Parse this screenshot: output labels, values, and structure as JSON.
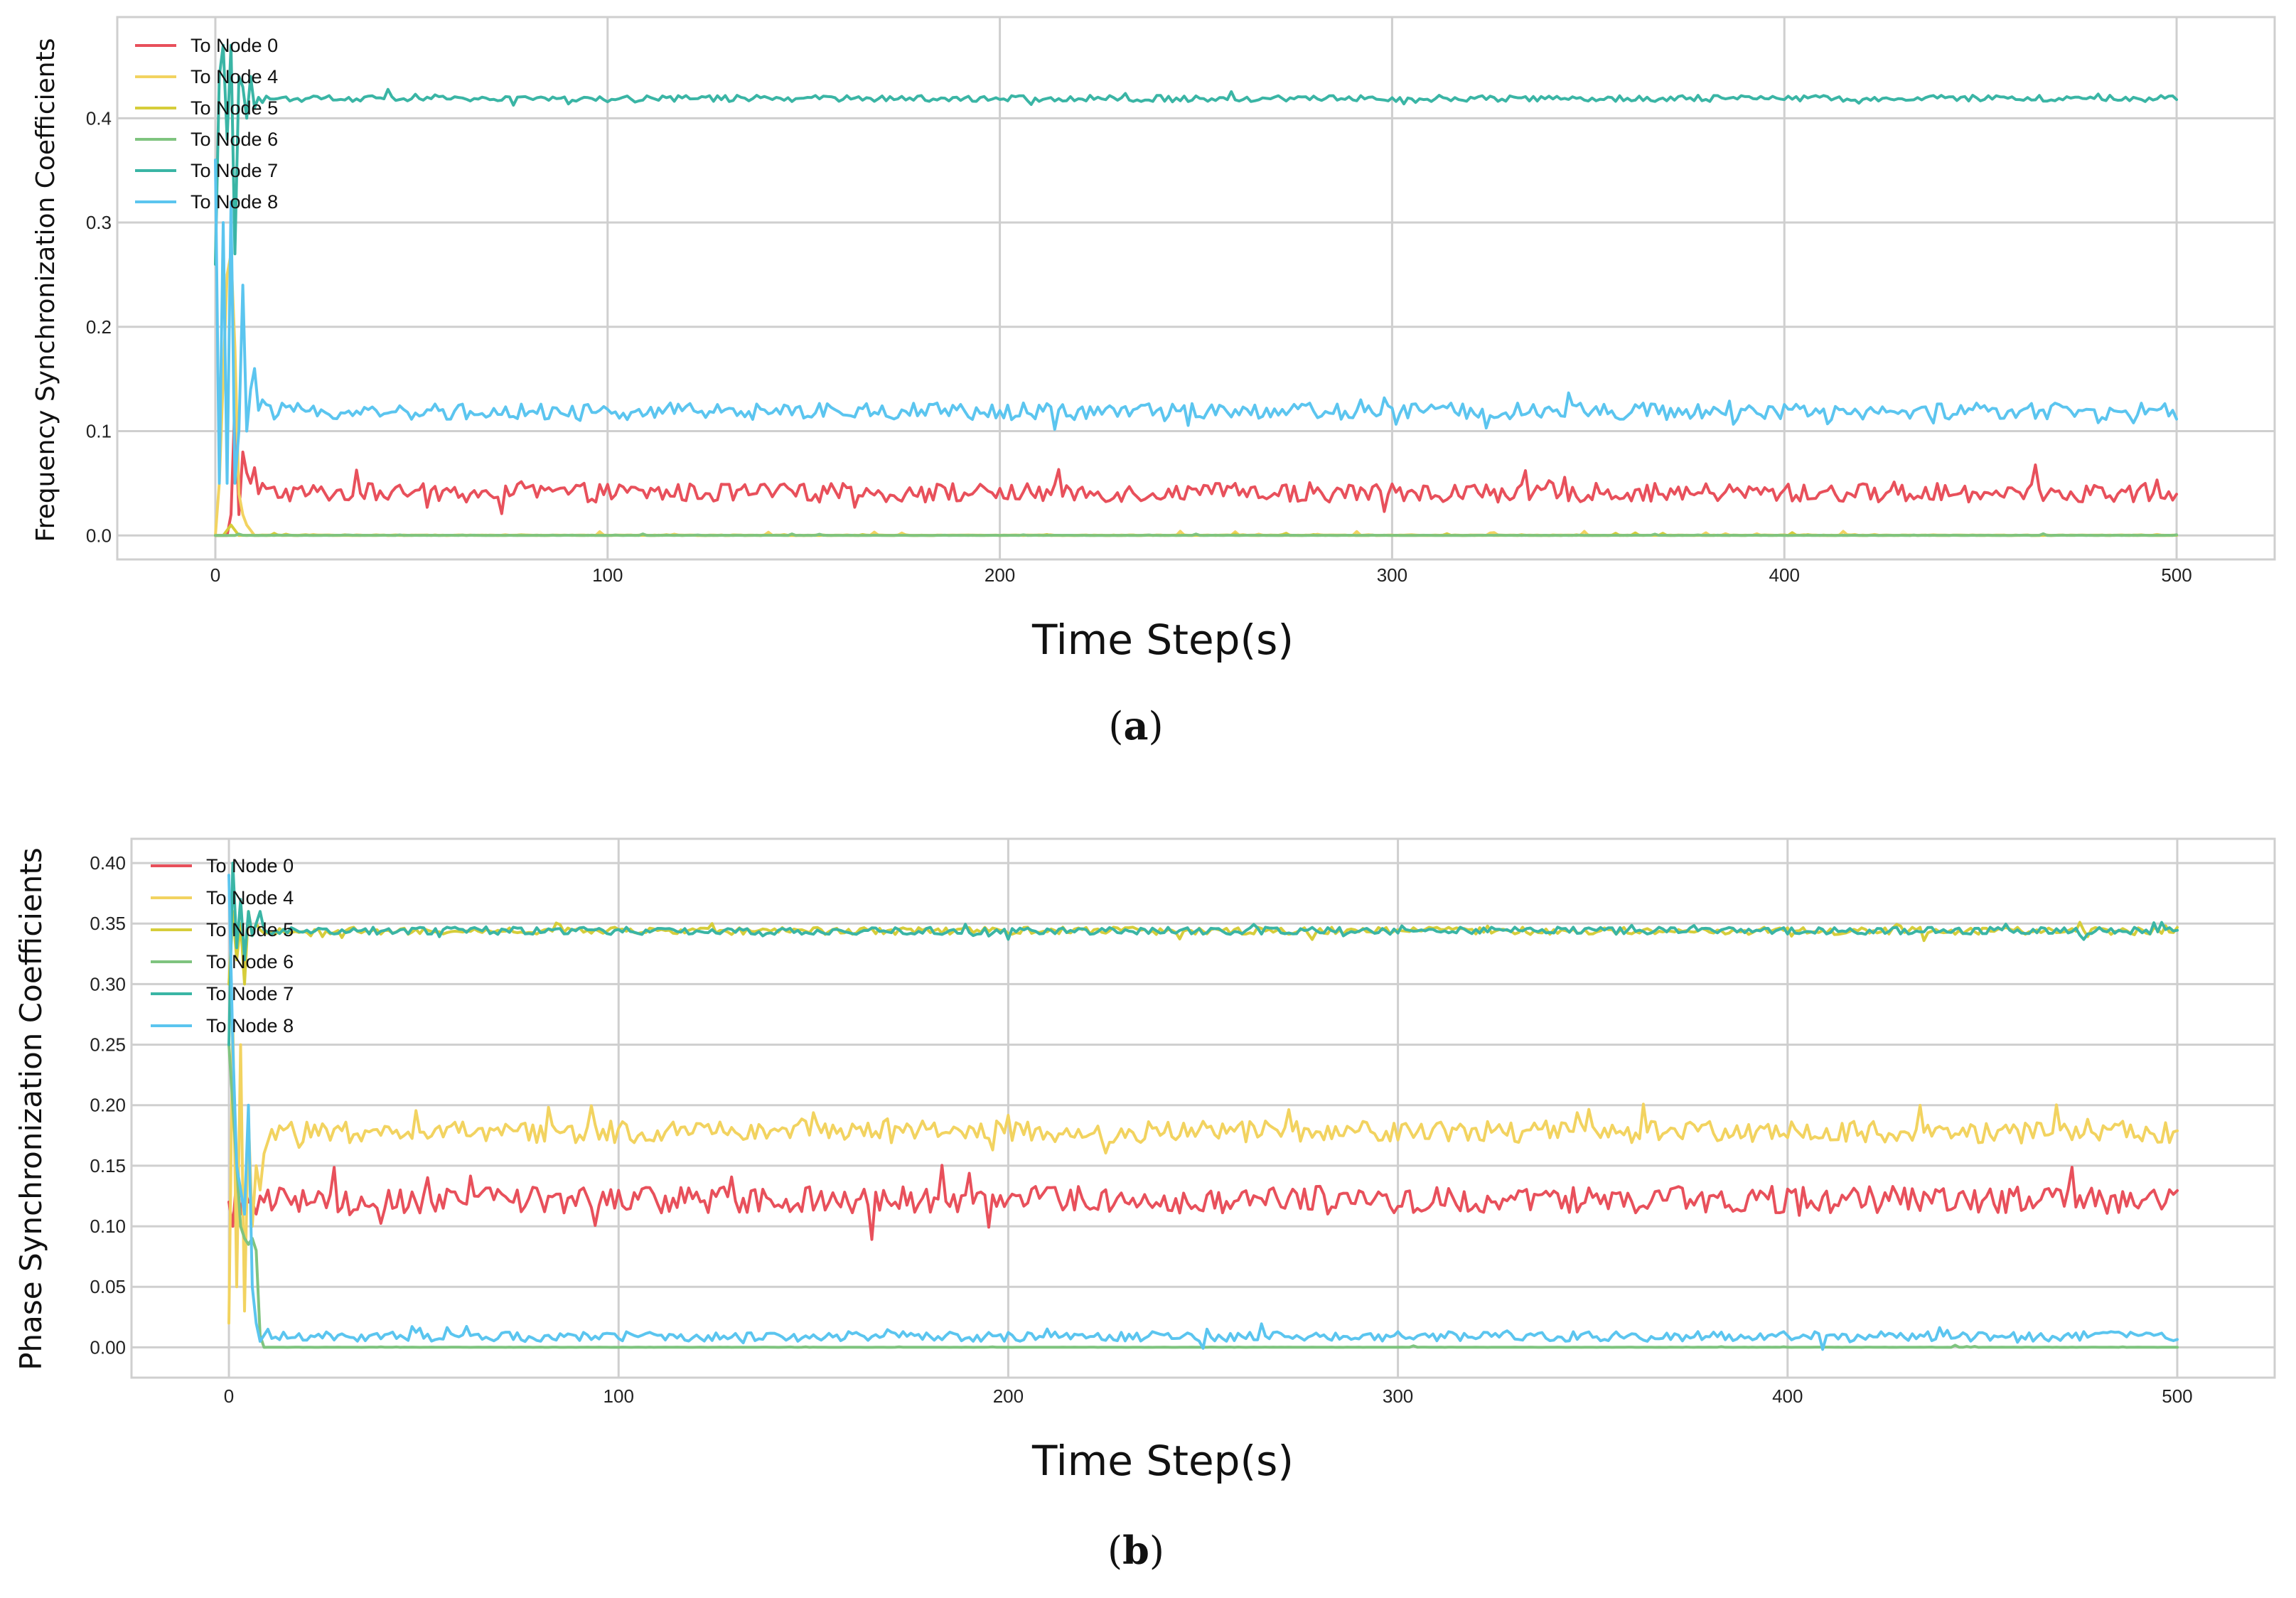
{
  "chart_data": [
    {
      "type": "line",
      "panel": "a",
      "caption_open": "(",
      "caption_letter": "a",
      "caption_close": ")",
      "xlabel": "Time Step(s)",
      "ylabel": "Frequency Synchronization Coefficients",
      "xlim": [
        -25,
        525
      ],
      "ylim": [
        -0.023,
        0.497
      ],
      "xticks": [
        0,
        100,
        200,
        300,
        400,
        500
      ],
      "xtick_labels": [
        "0",
        "100",
        "200",
        "300",
        "400",
        "500"
      ],
      "yticks": [
        0.0,
        0.1,
        0.2,
        0.3,
        0.4
      ],
      "ytick_labels": [
        "0.0",
        "0.1",
        "0.2",
        "0.3",
        "0.4"
      ],
      "legend_position": "top-left",
      "grid": true,
      "series": [
        {
          "name": "To Node 0",
          "color": "#e8505b",
          "baseline": 0.041,
          "noise": 0.009,
          "early": [
            [
              0,
              0.0
            ],
            [
              1,
              0.0
            ],
            [
              2,
              0.0
            ],
            [
              3,
              0.0
            ],
            [
              4,
              0.02
            ],
            [
              5,
              0.13
            ],
            [
              6,
              0.02
            ],
            [
              7,
              0.08
            ],
            [
              8,
              0.06
            ],
            [
              9,
              0.05
            ],
            [
              10,
              0.065
            ],
            [
              11,
              0.04
            ],
            [
              12,
              0.05
            ]
          ]
        },
        {
          "name": "To Node 4",
          "color": "#f2d360",
          "baseline": 0.0,
          "noise": 0.001,
          "early": [
            [
              0,
              0.0
            ],
            [
              1,
              0.05
            ],
            [
              2,
              0.15
            ],
            [
              3,
              0.25
            ],
            [
              4,
              0.27
            ],
            [
              5,
              0.18
            ],
            [
              6,
              0.04
            ],
            [
              7,
              0.02
            ],
            [
              8,
              0.01
            ],
            [
              9,
              0.005
            ],
            [
              10,
              0.0
            ]
          ]
        },
        {
          "name": "To Node 5",
          "color": "#d6cd3a",
          "baseline": 0.0,
          "noise": 0.0008,
          "early": [
            [
              0,
              0.0
            ],
            [
              2,
              0.0
            ],
            [
              4,
              0.01
            ],
            [
              6,
              0.0
            ]
          ]
        },
        {
          "name": "To Node 6",
          "color": "#7fc47f",
          "baseline": 0.0,
          "noise": 0.0005,
          "early": [
            [
              0,
              0.0
            ],
            [
              5,
              0.0
            ]
          ]
        },
        {
          "name": "To Node 7",
          "color": "#3ab5a5",
          "baseline": 0.419,
          "noise": 0.003,
          "early": [
            [
              0,
              0.26
            ],
            [
              1,
              0.44
            ],
            [
              2,
              0.47
            ],
            [
              3,
              0.38
            ],
            [
              4,
              0.47
            ],
            [
              5,
              0.27
            ],
            [
              6,
              0.44
            ],
            [
              7,
              0.43
            ],
            [
              8,
              0.4
            ],
            [
              9,
              0.44
            ],
            [
              10,
              0.41
            ],
            [
              11,
              0.42
            ],
            [
              12,
              0.415
            ]
          ]
        },
        {
          "name": "To Node 8",
          "color": "#5bc5ef",
          "baseline": 0.119,
          "noise": 0.008,
          "early": [
            [
              0,
              0.36
            ],
            [
              1,
              0.05
            ],
            [
              2,
              0.3
            ],
            [
              3,
              0.05
            ],
            [
              4,
              0.32
            ],
            [
              5,
              0.05
            ],
            [
              6,
              0.1
            ],
            [
              7,
              0.24
            ],
            [
              8,
              0.1
            ],
            [
              9,
              0.14
            ],
            [
              10,
              0.16
            ],
            [
              11,
              0.12
            ],
            [
              12,
              0.13
            ]
          ]
        }
      ]
    },
    {
      "type": "line",
      "panel": "b",
      "caption_open": "(",
      "caption_letter": "b",
      "caption_close": ")",
      "xlabel": "Time Step(s)",
      "ylabel": "Phase Synchronization Coefficients",
      "xlim": [
        -25,
        525
      ],
      "ylim": [
        -0.025,
        0.42
      ],
      "xticks": [
        0,
        100,
        200,
        300,
        400,
        500
      ],
      "xtick_labels": [
        "0",
        "100",
        "200",
        "300",
        "400",
        "500"
      ],
      "yticks": [
        0.0,
        0.05,
        0.1,
        0.15,
        0.2,
        0.25,
        0.3,
        0.35,
        0.4
      ],
      "ytick_labels": [
        "0.00",
        "0.05",
        "0.10",
        "0.15",
        "0.20",
        "0.25",
        "0.30",
        "0.35",
        "0.40"
      ],
      "legend_position": "top-left",
      "grid": true,
      "series": [
        {
          "name": "To Node 0",
          "color": "#e8505b",
          "baseline": 0.122,
          "noise": 0.011,
          "early": [
            [
              0,
              0.12
            ],
            [
              1,
              0.1
            ],
            [
              2,
              0.14
            ],
            [
              3,
              0.11
            ],
            [
              4,
              0.13
            ],
            [
              5,
              0.12
            ],
            [
              6,
              0.12
            ],
            [
              7,
              0.11
            ],
            [
              8,
              0.125
            ],
            [
              9,
              0.12
            ],
            [
              10,
              0.13
            ]
          ]
        },
        {
          "name": "To Node 4",
          "color": "#f2d360",
          "baseline": 0.178,
          "noise": 0.009,
          "early": [
            [
              0,
              0.02
            ],
            [
              1,
              0.27
            ],
            [
              2,
              0.05
            ],
            [
              3,
              0.25
            ],
            [
              4,
              0.03
            ],
            [
              5,
              0.19
            ],
            [
              6,
              0.1
            ],
            [
              7,
              0.15
            ],
            [
              8,
              0.13
            ],
            [
              9,
              0.16
            ],
            [
              10,
              0.17
            ],
            [
              11,
              0.18
            ]
          ]
        },
        {
          "name": "To Node 5",
          "color": "#d6cd3a",
          "baseline": 0.344,
          "noise": 0.003,
          "early": [
            [
              0,
              0.3
            ],
            [
              1,
              0.36
            ],
            [
              2,
              0.32
            ],
            [
              3,
              0.35
            ],
            [
              4,
              0.3
            ],
            [
              5,
              0.36
            ],
            [
              6,
              0.34
            ],
            [
              7,
              0.35
            ],
            [
              8,
              0.345
            ]
          ]
        },
        {
          "name": "To Node 6",
          "color": "#7fc47f",
          "baseline": 0.0,
          "noise": 0.0005,
          "early": [
            [
              0,
              0.25
            ],
            [
              1,
              0.2
            ],
            [
              2,
              0.15
            ],
            [
              3,
              0.1
            ],
            [
              4,
              0.09
            ],
            [
              5,
              0.085
            ],
            [
              6,
              0.09
            ],
            [
              7,
              0.08
            ],
            [
              8,
              0.01
            ],
            [
              9,
              0.0
            ]
          ]
        },
        {
          "name": "To Node 7",
          "color": "#3ab5a5",
          "baseline": 0.344,
          "noise": 0.003,
          "early": [
            [
              0,
              0.25
            ],
            [
              1,
              0.4
            ],
            [
              2,
              0.33
            ],
            [
              3,
              0.37
            ],
            [
              4,
              0.32
            ],
            [
              5,
              0.36
            ],
            [
              6,
              0.34
            ],
            [
              7,
              0.35
            ],
            [
              8,
              0.36
            ],
            [
              9,
              0.345
            ]
          ]
        },
        {
          "name": "To Node 8",
          "color": "#5bc5ef",
          "baseline": 0.009,
          "noise": 0.004,
          "early": [
            [
              0,
              0.39
            ],
            [
              1,
              0.25
            ],
            [
              2,
              0.15
            ],
            [
              3,
              0.13
            ],
            [
              4,
              0.11
            ],
            [
              5,
              0.2
            ],
            [
              6,
              0.05
            ],
            [
              7,
              0.02
            ],
            [
              8,
              0.005
            ],
            [
              9,
              0.01
            ],
            [
              10,
              0.015
            ]
          ]
        }
      ]
    }
  ]
}
